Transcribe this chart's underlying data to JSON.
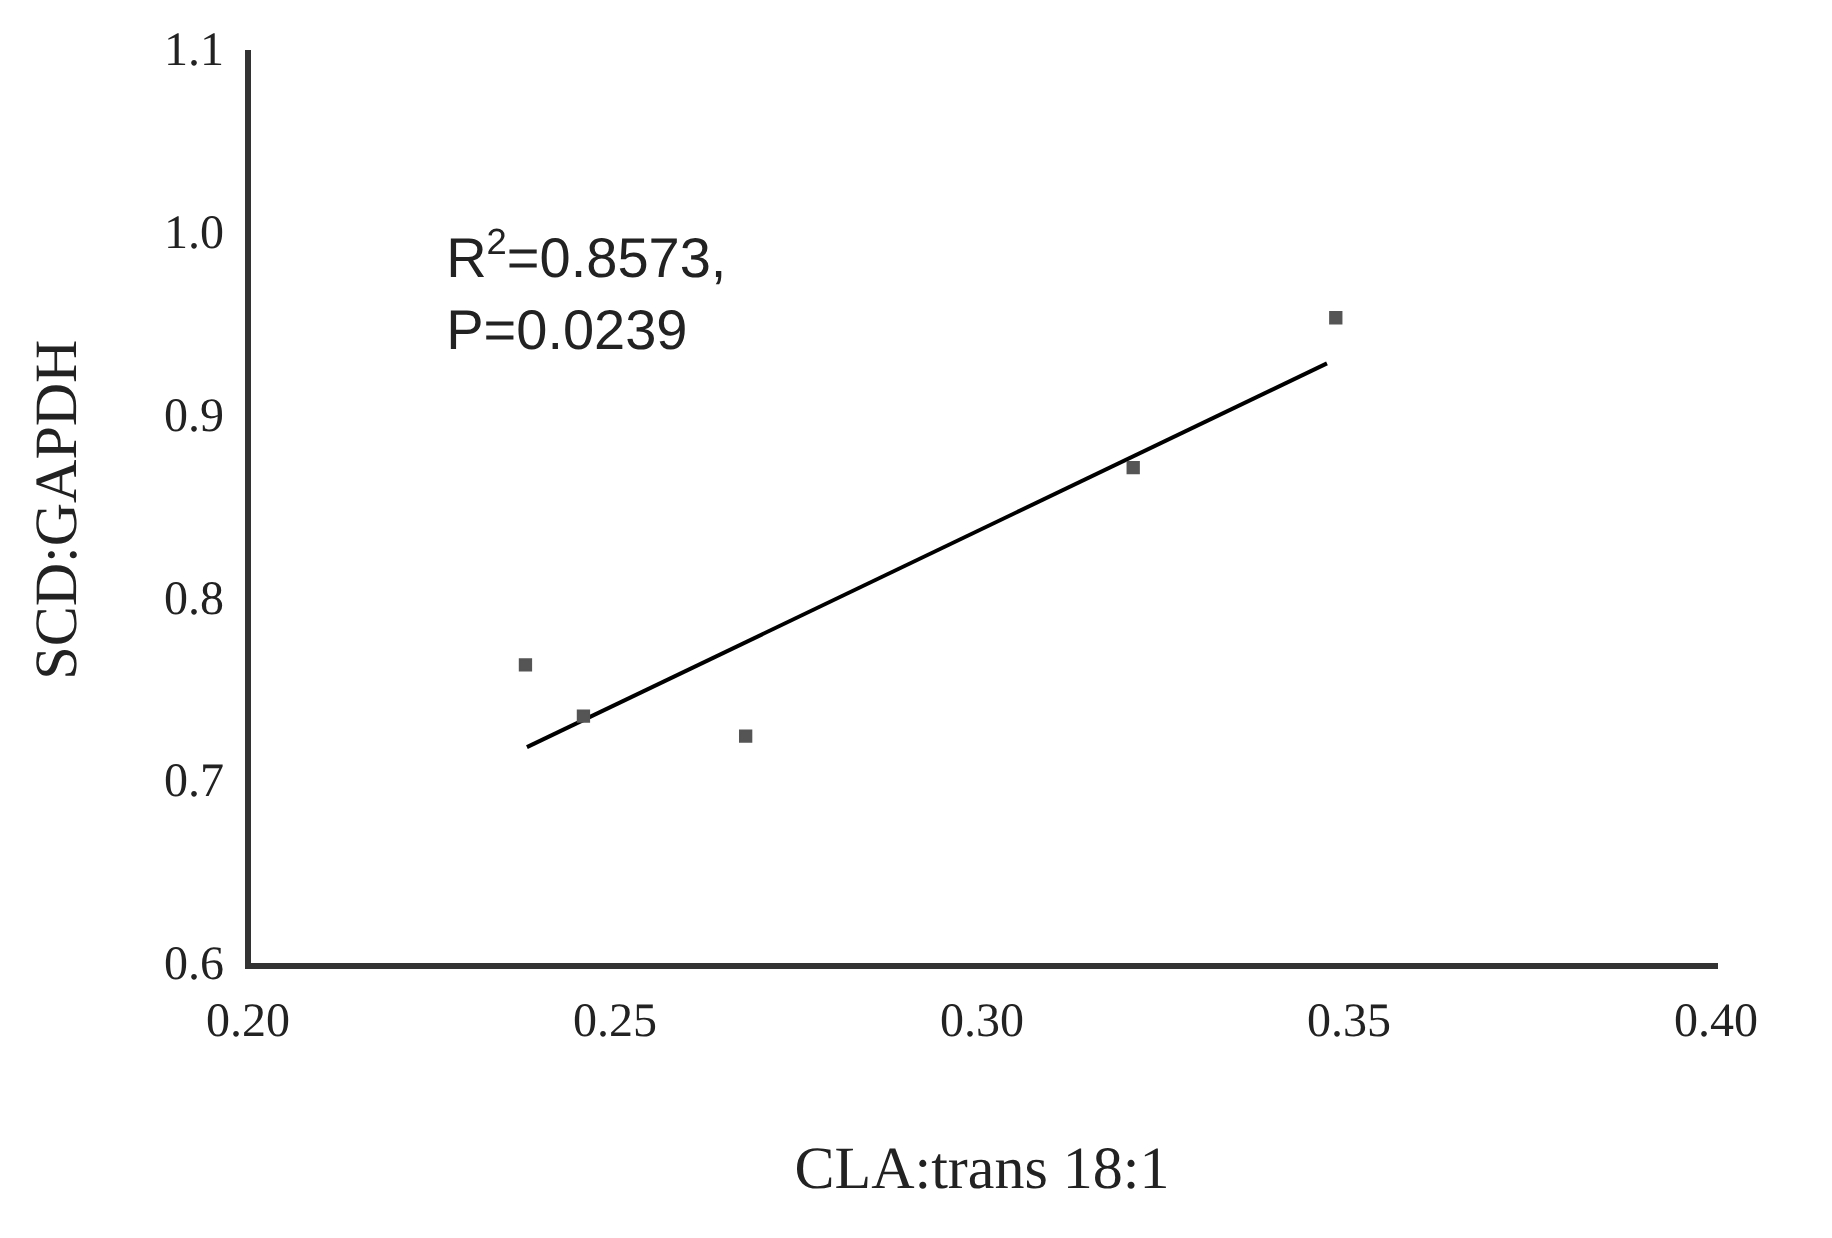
{
  "chart_data": {
    "type": "scatter",
    "xlabel": "CLA:trans 18:1",
    "ylabel": "SCD:GAPDH",
    "series": [
      {
        "color": "#555555",
        "marker": "square",
        "x": [
          0.2378,
          0.2457,
          0.2678,
          0.3206,
          0.3482
        ],
        "values": [
          0.765,
          0.737,
          0.726,
          0.873,
          0.955
        ]
      },
      {
        "type": "line",
        "color": "#000000",
        "marker": "none",
        "x": [
          0.238,
          0.347
        ],
        "values": [
          0.72,
          0.93
        ]
      }
    ],
    "xlim": [
      0.2,
      0.4
    ],
    "xticks": [
      {
        "value": 0.2,
        "label": "0.20"
      },
      {
        "value": 0.25,
        "label": "0.25"
      },
      {
        "value": 0.3,
        "label": "0.30"
      },
      {
        "value": 0.35,
        "label": "0.35"
      },
      {
        "value": 0.4,
        "label": "0.40"
      }
    ],
    "ylim": [
      0.6,
      1.1
    ],
    "yticks": [
      0.6,
      0.7,
      0.8,
      0.9,
      {
        "value": 1,
        "label": "1.0"
      },
      1.1
    ],
    "annotations": [
      "R$^{2}$=0.8573,",
      "P=0.0239"
    ]
  }
}
